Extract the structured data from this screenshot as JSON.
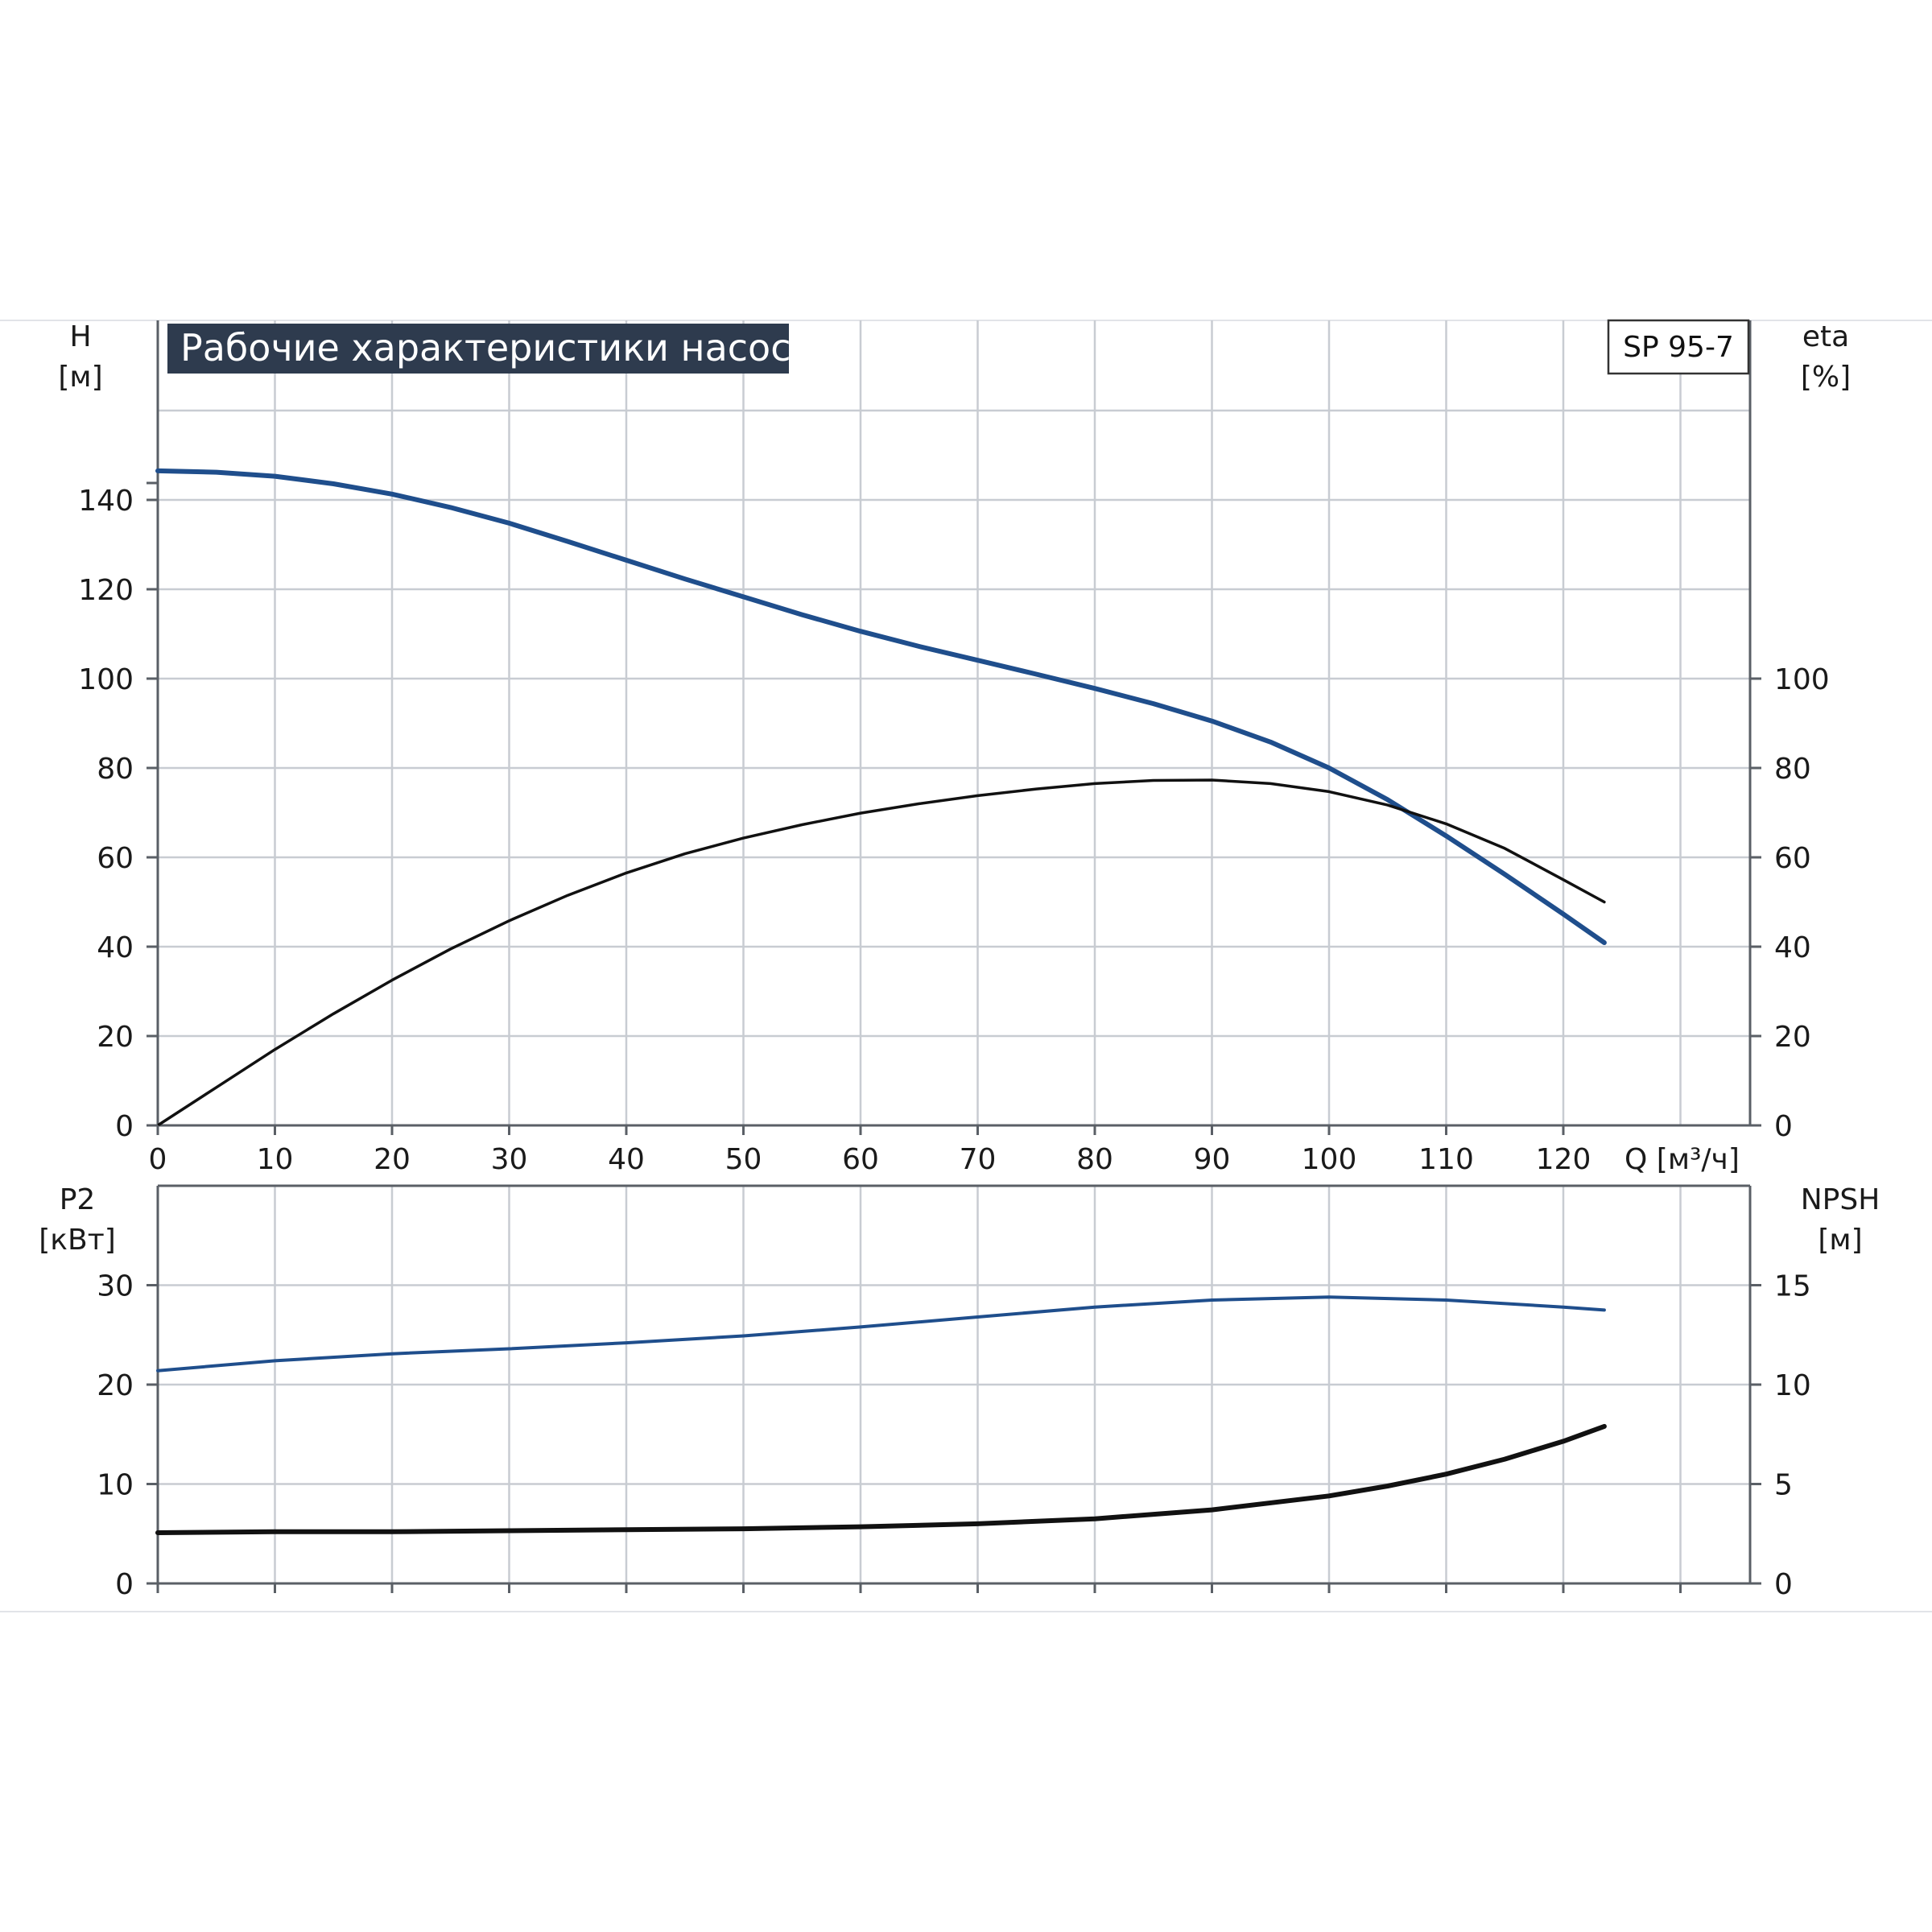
{
  "colors": {
    "head_curve": "#1f4e8c",
    "eta_curve": "#111111",
    "p2_curve": "#1f4e8c",
    "npsh_curve": "#111111",
    "title_bg": "#2e3b4e",
    "grid": "#c8ccd2"
  },
  "chart_data": [
    {
      "type": "line",
      "title": "Рабочие характеристики насоса",
      "model": "SP 95-7",
      "xlabel": "Q [м³/ч]",
      "ylabel_left": {
        "name": "H",
        "unit": "[м]"
      },
      "ylabel_right": {
        "name": "eta",
        "unit": "[%]"
      },
      "xlim": [
        0,
        136
      ],
      "ylim_left": [
        0,
        160
      ],
      "ylim_right": [
        0,
        160
      ],
      "x_ticks": [
        "0",
        "10",
        "20",
        "30",
        "40",
        "50",
        "60",
        "70",
        "80",
        "90",
        "100",
        "110",
        "120"
      ],
      "y_ticks_left": [
        "0",
        "20",
        "40",
        "60",
        "80",
        "100",
        "120",
        "140"
      ],
      "y_ticks_right": [
        "0",
        "20",
        "40",
        "60",
        "80",
        "100"
      ],
      "grid": true,
      "series": [
        {
          "id": "head",
          "axis": "left",
          "points": [
            [
              0,
              146.5
            ],
            [
              5,
              146.2
            ],
            [
              10,
              145.3
            ],
            [
              15,
              143.6
            ],
            [
              20,
              141.3
            ],
            [
              25,
              138.3
            ],
            [
              30,
              134.8
            ],
            [
              35,
              130.7
            ],
            [
              40,
              126.5
            ],
            [
              45,
              122.3
            ],
            [
              50,
              118.3
            ],
            [
              55,
              114.3
            ],
            [
              60,
              110.6
            ],
            [
              65,
              107.2
            ],
            [
              70,
              104.1
            ],
            [
              75,
              101.0
            ],
            [
              80,
              97.8
            ],
            [
              85,
              94.4
            ],
            [
              90,
              90.5
            ],
            [
              95,
              85.8
            ],
            [
              100,
              80.0
            ],
            [
              105,
              72.9
            ],
            [
              110,
              64.8
            ],
            [
              115,
              56.2
            ],
            [
              120,
              47.3
            ],
            [
              123.5,
              40.9
            ]
          ]
        },
        {
          "id": "eta",
          "axis": "right",
          "points": [
            [
              0,
              0
            ],
            [
              5,
              8.5
            ],
            [
              10,
              17
            ],
            [
              15,
              25
            ],
            [
              20,
              32.5
            ],
            [
              25,
              39.5
            ],
            [
              30,
              45.8
            ],
            [
              35,
              51.5
            ],
            [
              40,
              56.5
            ],
            [
              45,
              60.8
            ],
            [
              50,
              64.3
            ],
            [
              55,
              67.3
            ],
            [
              60,
              69.9
            ],
            [
              65,
              72.0
            ],
            [
              70,
              73.8
            ],
            [
              75,
              75.3
            ],
            [
              80,
              76.5
            ],
            [
              85,
              77.2
            ],
            [
              90,
              77.3
            ],
            [
              95,
              76.5
            ],
            [
              100,
              74.7
            ],
            [
              105,
              71.7
            ],
            [
              110,
              67.5
            ],
            [
              115,
              62.0
            ],
            [
              120,
              55.0
            ],
            [
              123.5,
              50.0
            ]
          ]
        }
      ]
    },
    {
      "type": "line",
      "xlabel": "Q [м³/ч]",
      "ylabel_left": {
        "name": "P2",
        "unit": "[кВт]"
      },
      "ylabel_right": {
        "name": "NPSH",
        "unit": "[м]"
      },
      "xlim": [
        0,
        136
      ],
      "ylim_left": [
        0,
        40
      ],
      "ylim_right": [
        0,
        20
      ],
      "y_ticks_left": [
        "0",
        "10",
        "20",
        "30"
      ],
      "y_ticks_right": [
        "0",
        "5",
        "10",
        "15"
      ],
      "grid": true,
      "series": [
        {
          "id": "p2",
          "axis": "left",
          "points": [
            [
              0,
              21.4
            ],
            [
              10,
              22.4
            ],
            [
              20,
              23.1
            ],
            [
              30,
              23.6
            ],
            [
              40,
              24.2
            ],
            [
              50,
              24.9
            ],
            [
              60,
              25.8
            ],
            [
              70,
              26.8
            ],
            [
              80,
              27.8
            ],
            [
              90,
              28.5
            ],
            [
              100,
              28.8
            ],
            [
              110,
              28.5
            ],
            [
              120,
              27.8
            ],
            [
              123.5,
              27.5
            ]
          ]
        },
        {
          "id": "npsh",
          "axis": "right",
          "points": [
            [
              0,
              2.55
            ],
            [
              10,
              2.6
            ],
            [
              20,
              2.6
            ],
            [
              30,
              2.65
            ],
            [
              40,
              2.7
            ],
            [
              50,
              2.75
            ],
            [
              60,
              2.85
            ],
            [
              70,
              3.0
            ],
            [
              80,
              3.25
            ],
            [
              90,
              3.7
            ],
            [
              100,
              4.4
            ],
            [
              105,
              4.9
            ],
            [
              110,
              5.5
            ],
            [
              115,
              6.25
            ],
            [
              120,
              7.15
            ],
            [
              123.5,
              7.9
            ]
          ]
        }
      ]
    }
  ]
}
